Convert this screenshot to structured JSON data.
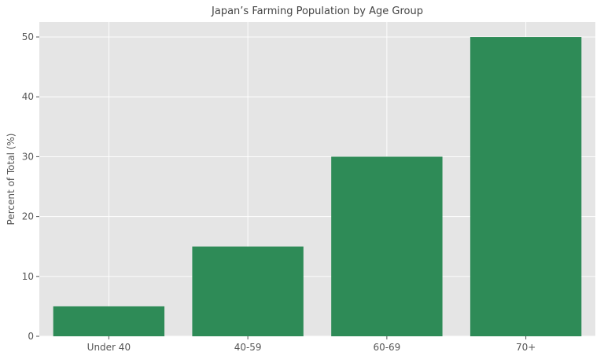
{
  "chart_data": {
    "type": "bar",
    "title": "Japan’s Farming Population by Age Group",
    "xlabel": "",
    "ylabel": "Percent of Total (%)",
    "categories": [
      "Under 40",
      "40-59",
      "60-69",
      "70+"
    ],
    "values": [
      5,
      15,
      30,
      50
    ],
    "ylim": [
      0,
      52.5
    ],
    "yticks": [
      0,
      10,
      20,
      30,
      40,
      50
    ],
    "grid": true,
    "legend": "none",
    "colors": {
      "bar": "#2e8b57",
      "plot_background": "#e5e5e5",
      "grid": "#ffffff"
    }
  }
}
